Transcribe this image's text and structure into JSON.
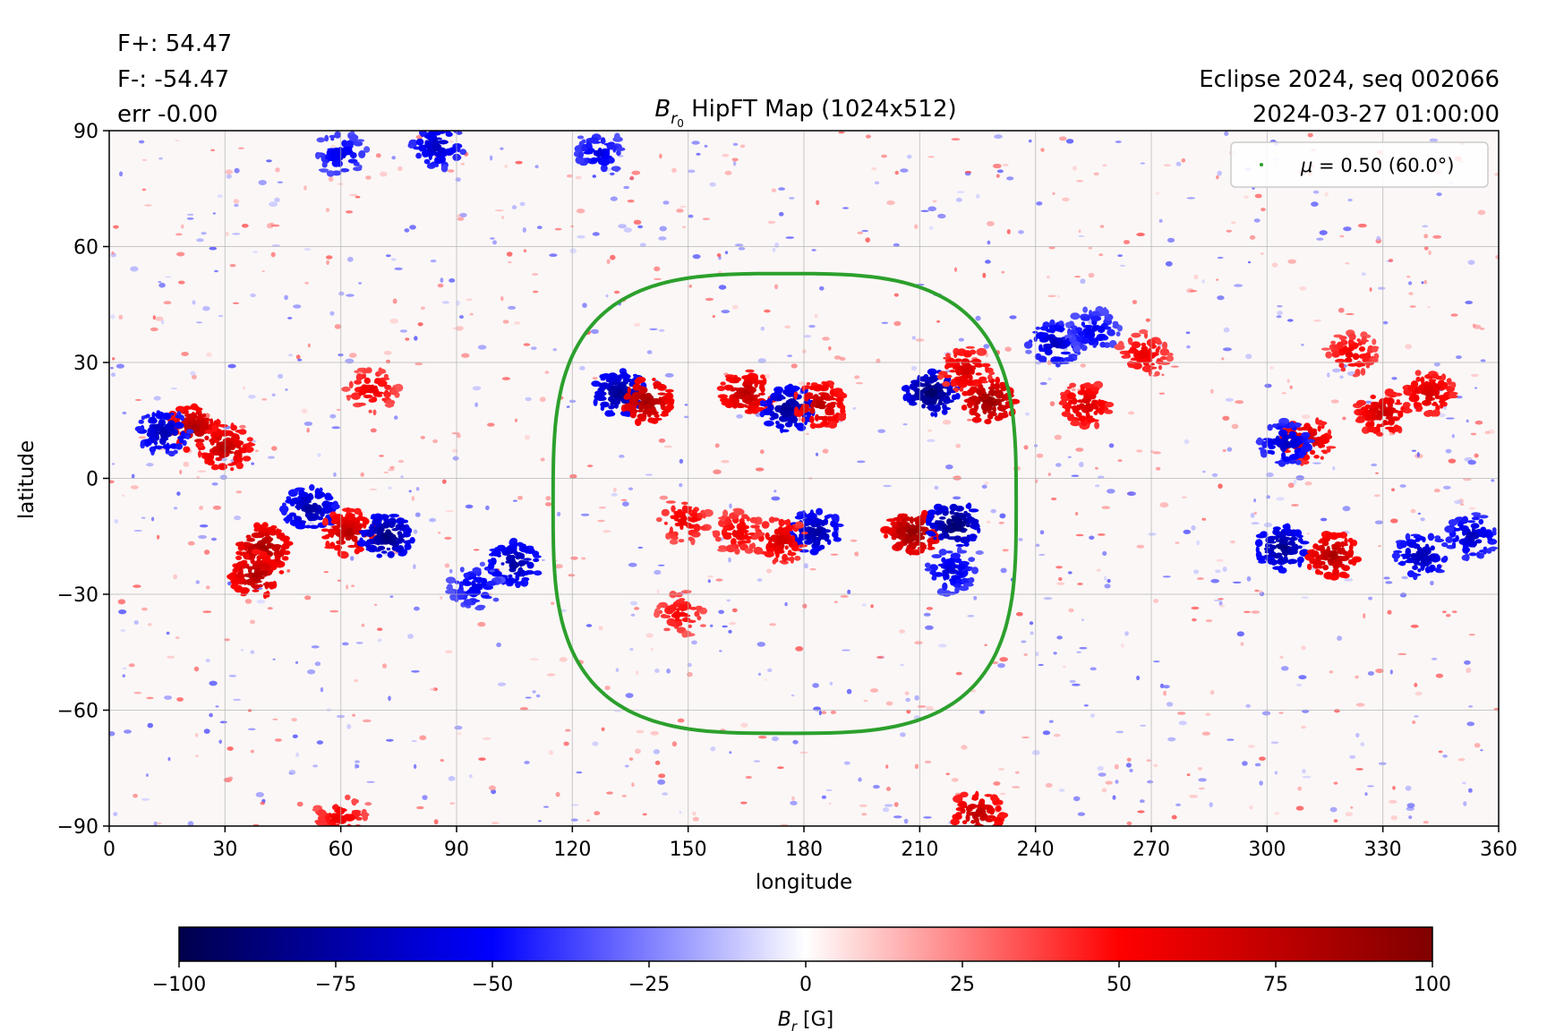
{
  "header": {
    "flux_pos": "F+: 54.47",
    "flux_neg": "F-: -54.47",
    "err": "err -0.00",
    "event": "Eclipse 2024, seq 002066",
    "timestamp": "2024-03-27 01:00:00"
  },
  "chart_data": [
    {
      "type": "heatmap",
      "title_symbol": "B",
      "title_sub": "r",
      "title_sub_sub": "0",
      "title_text": " HipFT Map (1024x512)",
      "xlabel": "longitude",
      "ylabel": "latitude",
      "xlim": [
        0,
        360
      ],
      "ylim": [
        -90,
        90
      ],
      "xticks": [
        0,
        30,
        60,
        90,
        120,
        150,
        180,
        210,
        240,
        270,
        300,
        330,
        360
      ],
      "yticks": [
        -90,
        -60,
        -30,
        0,
        30,
        60,
        90
      ],
      "ytick_labels": [
        "−90",
        "−60",
        "−30",
        "0",
        "30",
        "60",
        "90"
      ],
      "grid": true,
      "colormap": "seismic",
      "clim": [
        -100,
        100
      ],
      "legend_placement": "top-right",
      "legend_color": "#2ca02c",
      "mu_curve": {
        "label_prefix": "μ",
        "label_value": " = 0.50 (60.0°)",
        "center_lon": 175,
        "center_lat": -6,
        "half_width_deg": 60,
        "north_lat": 53,
        "south_lat": -66
      },
      "active_regions": [
        {
          "lon": 22,
          "lat": 13,
          "sign": 1,
          "strength": 85
        },
        {
          "lon": 14,
          "lat": 12,
          "sign": -1,
          "strength": 75
        },
        {
          "lon": 30,
          "lat": 8,
          "sign": 1,
          "strength": 80
        },
        {
          "lon": 40,
          "lat": -18,
          "sign": 1,
          "strength": 90
        },
        {
          "lon": 38,
          "lat": -25,
          "sign": 1,
          "strength": 85
        },
        {
          "lon": 52,
          "lat": -8,
          "sign": -1,
          "strength": 80
        },
        {
          "lon": 62,
          "lat": -14,
          "sign": 1,
          "strength": 80
        },
        {
          "lon": 72,
          "lat": -15,
          "sign": -1,
          "strength": 90
        },
        {
          "lon": 105,
          "lat": -22,
          "sign": -1,
          "strength": 80
        },
        {
          "lon": 95,
          "lat": -28,
          "sign": -1,
          "strength": 60
        },
        {
          "lon": 68,
          "lat": 23,
          "sign": 1,
          "strength": 60
        },
        {
          "lon": 132,
          "lat": 22,
          "sign": -1,
          "strength": 85
        },
        {
          "lon": 139,
          "lat": 20,
          "sign": 1,
          "strength": 90
        },
        {
          "lon": 165,
          "lat": 22,
          "sign": 1,
          "strength": 80
        },
        {
          "lon": 176,
          "lat": 18,
          "sign": -1,
          "strength": 85
        },
        {
          "lon": 184,
          "lat": 19,
          "sign": 1,
          "strength": 80
        },
        {
          "lon": 213,
          "lat": 22,
          "sign": -1,
          "strength": 95
        },
        {
          "lon": 228,
          "lat": 20,
          "sign": 1,
          "strength": 95
        },
        {
          "lon": 222,
          "lat": 28,
          "sign": 1,
          "strength": 70
        },
        {
          "lon": 208,
          "lat": -14,
          "sign": 1,
          "strength": 95
        },
        {
          "lon": 219,
          "lat": -12,
          "sign": -1,
          "strength": 95
        },
        {
          "lon": 183,
          "lat": -14,
          "sign": -1,
          "strength": 80
        },
        {
          "lon": 174,
          "lat": -16,
          "sign": 1,
          "strength": 70
        },
        {
          "lon": 163,
          "lat": -14,
          "sign": 1,
          "strength": 60
        },
        {
          "lon": 149,
          "lat": -11,
          "sign": 1,
          "strength": 60
        },
        {
          "lon": 148,
          "lat": -35,
          "sign": 1,
          "strength": 55
        },
        {
          "lon": 218,
          "lat": -24,
          "sign": -1,
          "strength": 65
        },
        {
          "lon": 253,
          "lat": 19,
          "sign": 1,
          "strength": 70
        },
        {
          "lon": 245,
          "lat": 35,
          "sign": -1,
          "strength": 70
        },
        {
          "lon": 255,
          "lat": 38,
          "sign": -1,
          "strength": 60
        },
        {
          "lon": 268,
          "lat": 32,
          "sign": 1,
          "strength": 60
        },
        {
          "lon": 310,
          "lat": 10,
          "sign": 1,
          "strength": 75
        },
        {
          "lon": 305,
          "lat": 9,
          "sign": -1,
          "strength": 70
        },
        {
          "lon": 330,
          "lat": 17,
          "sign": 1,
          "strength": 75
        },
        {
          "lon": 342,
          "lat": 22,
          "sign": 1,
          "strength": 70
        },
        {
          "lon": 322,
          "lat": 32,
          "sign": 1,
          "strength": 60
        },
        {
          "lon": 304,
          "lat": -18,
          "sign": -1,
          "strength": 85
        },
        {
          "lon": 317,
          "lat": -20,
          "sign": 1,
          "strength": 85
        },
        {
          "lon": 340,
          "lat": -20,
          "sign": -1,
          "strength": 75
        },
        {
          "lon": 353,
          "lat": -15,
          "sign": -1,
          "strength": 70
        },
        {
          "lon": 60,
          "lat": 84,
          "sign": -1,
          "strength": 60
        },
        {
          "lon": 85,
          "lat": 86,
          "sign": -1,
          "strength": 70
        },
        {
          "lon": 127,
          "lat": 84,
          "sign": -1,
          "strength": 60
        },
        {
          "lon": 225,
          "lat": -87,
          "sign": 1,
          "strength": 80
        },
        {
          "lon": 60,
          "lat": -88,
          "sign": 1,
          "strength": 60
        }
      ]
    },
    {
      "type": "heatmap",
      "title_symbol": "B",
      "title_sub": "r",
      "title_text": " [G]",
      "range": [
        -100,
        100
      ],
      "ticks": [
        -100,
        -75,
        -50,
        -25,
        0,
        25,
        50,
        75,
        100
      ],
      "tick_labels": [
        "−100",
        "−75",
        "−50",
        "−25",
        "0",
        "25",
        "50",
        "75",
        "100"
      ],
      "stops": [
        "#00004c",
        "#0000ff",
        "#ffffff",
        "#ff0000",
        "#800000"
      ]
    }
  ]
}
